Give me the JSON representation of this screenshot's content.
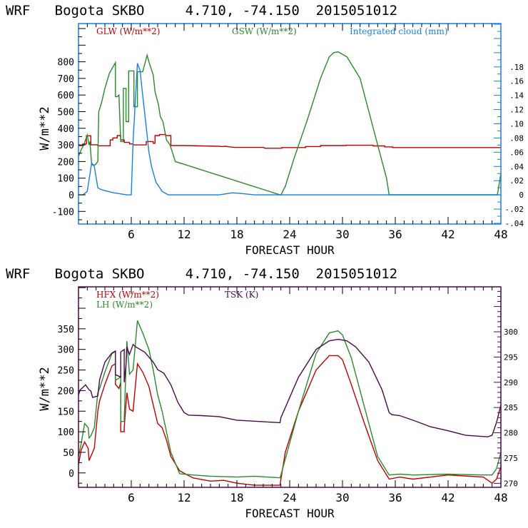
{
  "chart_data": [
    {
      "type": "line",
      "title": "WRF   Bogota SKBO     4.710, -74.150  2015051012",
      "xlabel": "FORECAST HOUR",
      "ylabel": "W/m**2",
      "xlim": [
        0,
        48
      ],
      "ylim": [
        -176,
        1030
      ],
      "y2lim": [
        -0.041,
        0.241
      ],
      "x_ticks": [
        6,
        12,
        18,
        24,
        30,
        36,
        42,
        48
      ],
      "y_ticks": [
        -100,
        0,
        100,
        200,
        300,
        400,
        500,
        600,
        700,
        800
      ],
      "y_tick_labels": [
        "-100",
        "0",
        "100",
        "200",
        "300",
        "400",
        "500",
        "600",
        "700",
        "800"
      ],
      "y2_ticks": [
        -0.04,
        -0.02,
        0,
        0.02,
        0.04,
        0.06,
        0.08,
        0.1,
        0.12,
        0.14,
        0.16,
        0.18
      ],
      "y2_tick_labels": [
        "-.04",
        "-.02",
        "0",
        ".02",
        ".04",
        ".06",
        ".08",
        ".10",
        ".12",
        ".14",
        ".16",
        ".18"
      ],
      "frame_color": "#1a7fe0",
      "legend": [
        {
          "label": "GLW (W/m**2)",
          "color": "#c00000"
        },
        {
          "label": "GSW (W/m**2)",
          "color": "#2a8a2a"
        },
        {
          "label": "Integrated cloud (mm)",
          "color": "#1a7fe0"
        }
      ],
      "series": [
        {
          "name": "GLW (W/m**2)",
          "color": "#c00000",
          "axis": "left",
          "x": [
            0,
            0.5,
            0.5,
            0.9,
            0.9,
            1.4,
            1.4,
            2.2,
            2.2,
            3.6,
            3.6,
            3.9,
            3.9,
            4.4,
            4.4,
            4.8,
            4.8,
            5.2,
            5.2,
            5.8,
            5.8,
            6.2,
            6.2,
            7.7,
            7.7,
            8.5,
            8.5,
            8.7,
            8.7,
            9.2,
            9.2,
            9.9,
            9.9,
            10.5,
            10.5,
            12,
            16,
            16.3,
            16.7,
            17.2,
            17.8,
            21,
            21.2,
            23.1,
            23.1,
            25.8,
            25.8,
            27.5,
            27.5,
            30.4,
            30.4,
            33.5,
            33.5,
            34.8,
            34.8,
            35.7,
            35.7,
            40,
            48
          ],
          "y": [
            296,
            296,
            306,
            306,
            355,
            355,
            301,
            301,
            295,
            295,
            330,
            330,
            342,
            342,
            356,
            356,
            330,
            330,
            315,
            315,
            306,
            306,
            300,
            300,
            320,
            320,
            310,
            310,
            356,
            356,
            362,
            362,
            356,
            356,
            296,
            296,
            292,
            290,
            292,
            288,
            285,
            285,
            280,
            280,
            284,
            284,
            290,
            290,
            296,
            296,
            298,
            298,
            294,
            294,
            288,
            288,
            284,
            284,
            284
          ]
        },
        {
          "name": "GSW (W/m**2)",
          "color": "#2a8a2a",
          "axis": "left",
          "x": [
            0,
            0.3,
            0.6,
            1.0,
            1.2,
            1.3,
            1.5,
            1.9,
            2.2,
            2.3,
            2.6,
            3.0,
            3.5,
            4.2,
            4.2,
            4.4,
            4.6,
            4.8,
            4.8,
            5.1,
            5.1,
            5.4,
            5.4,
            5.7,
            5.7,
            6.3,
            6.3,
            6.7,
            6.7,
            7.3,
            7.8,
            8.0,
            8.5,
            8.7,
            9.1,
            9.3,
            9.6,
            10.0,
            10.4,
            11.0,
            22.9,
            23.0,
            23.5,
            24.5,
            26.0,
            27.5,
            28.5,
            29.0,
            29.5,
            30.5,
            32.0,
            33.0,
            34.0,
            35.0,
            35.3,
            47.2,
            47.6,
            48
          ],
          "y": [
            230,
            270,
            300,
            360,
            300,
            320,
            180,
            180,
            200,
            500,
            550,
            640,
            730,
            795,
            590,
            590,
            600,
            320,
            320,
            320,
            640,
            640,
            440,
            440,
            745,
            745,
            530,
            530,
            740,
            740,
            840,
            800,
            720,
            620,
            540,
            470,
            440,
            330,
            300,
            200,
            0,
            0,
            50,
            220,
            450,
            700,
            830,
            855,
            860,
            830,
            700,
            500,
            300,
            100,
            0,
            0,
            0,
            130
          ]
        },
        {
          "name": "Integrated cloud (mm)",
          "color": "#1a7fe0",
          "axis": "right",
          "x": [
            0,
            0.5,
            1.0,
            1.5,
            1.8,
            2.2,
            2.5,
            3.0,
            4.0,
            5.5,
            6.0,
            6.2,
            6.7,
            7.0,
            7.3,
            7.7,
            8.0,
            8.3,
            8.8,
            9.5,
            10.2,
            10.5,
            11.5,
            12.5,
            14.0,
            15.0,
            16.0,
            17.0,
            17.5,
            18.5,
            20.0,
            30.0,
            40.0,
            48.0
          ],
          "y": [
            0,
            0,
            0.005,
            0.045,
            0.04,
            0.01,
            0.008,
            0.006,
            0.003,
            0.0,
            0.0,
            0.075,
            0.185,
            0.175,
            0.14,
            0.095,
            0.06,
            0.04,
            0.018,
            0.005,
            0.0,
            0.0,
            0.0,
            0.0,
            0.0,
            0.0,
            0.0,
            0.002,
            0.003,
            0.002,
            0.0,
            0.0,
            0.0,
            0.0
          ]
        }
      ]
    },
    {
      "type": "line",
      "title": "WRF   Bogota SKBO     4.710, -74.150  2015051012",
      "xlabel": "FORECAST HOUR",
      "ylabel": "W/m**2",
      "xlim": [
        0,
        48
      ],
      "ylim": [
        -35,
        452
      ],
      "y2lim": [
        269.2,
        308.9
      ],
      "x_ticks": [
        6,
        12,
        18,
        24,
        30,
        36,
        42,
        48
      ],
      "y_ticks": [
        0,
        50,
        100,
        150,
        200,
        250,
        300,
        350
      ],
      "y_tick_labels": [
        "0",
        "50",
        "100",
        "150",
        "200",
        "250",
        "300",
        "350"
      ],
      "y2_ticks": [
        270,
        275,
        280,
        285,
        290,
        295,
        300
      ],
      "y2_tick_labels": [
        "270",
        "275",
        "280",
        "285",
        "290",
        "295",
        "300"
      ],
      "frame_color": "#4a0a4a",
      "legend": [
        {
          "label": "HFX (W/m**2)",
          "color": "#c00000"
        },
        {
          "label": "LH  (W/m**2)",
          "color": "#2a8a2a"
        },
        {
          "label": "TSK (K)",
          "color": "#4a0a4a"
        }
      ],
      "series": [
        {
          "name": "HFX (W/m**2)",
          "color": "#c00000",
          "axis": "left",
          "x": [
            0,
            0.3,
            0.7,
            1.1,
            1.2,
            1.4,
            1.8,
            2.2,
            2.4,
            3.0,
            3.8,
            4.2,
            4.2,
            4.6,
            4.8,
            4.8,
            5.2,
            5.2,
            5.5,
            5.8,
            6.2,
            6.7,
            7.3,
            8.0,
            8.5,
            9.0,
            9.5,
            10.0,
            10.5,
            11.5,
            13.0,
            15.0,
            16.5,
            18.0,
            20.0,
            22.9,
            23.5,
            25.0,
            27.0,
            28.5,
            29.5,
            30.0,
            31.0,
            32.5,
            34.0,
            35.3,
            36.5,
            38.0,
            42.0,
            46.0,
            47.0,
            47.5,
            48
          ],
          "y": [
            20,
            55,
            75,
            60,
            30,
            40,
            60,
            150,
            175,
            215,
            260,
            265,
            215,
            205,
            220,
            100,
            100,
            110,
            195,
            155,
            150,
            265,
            245,
            210,
            165,
            120,
            110,
            80,
            40,
            5,
            -12,
            -20,
            -18,
            -25,
            -30,
            -30,
            50,
            150,
            250,
            285,
            285,
            275,
            215,
            120,
            30,
            -15,
            -10,
            -15,
            -5,
            -10,
            -25,
            -15,
            15
          ]
        },
        {
          "name": "LH  (W/m**2)",
          "color": "#2a8a2a",
          "axis": "left",
          "x": [
            0,
            0.3,
            0.7,
            1.1,
            1.2,
            1.4,
            1.8,
            2.2,
            2.4,
            3.0,
            3.8,
            4.2,
            4.2,
            4.6,
            4.8,
            4.8,
            5.2,
            5.2,
            5.5,
            5.8,
            6.2,
            6.7,
            7.3,
            8.0,
            8.5,
            9.0,
            9.5,
            10.0,
            10.5,
            11.5,
            13.0,
            15.0,
            18.0,
            20.0,
            22.9,
            23.0,
            25.0,
            27.0,
            28.5,
            29.5,
            30.0,
            31.0,
            32.5,
            34.0,
            35.3,
            36.5,
            38.0,
            42.0,
            46.0,
            47.0,
            47.5,
            48
          ],
          "y": [
            40,
            70,
            120,
            110,
            85,
            90,
            110,
            195,
            205,
            245,
            290,
            295,
            225,
            230,
            235,
            125,
            125,
            130,
            320,
            240,
            250,
            370,
            340,
            300,
            250,
            190,
            150,
            100,
            50,
            -2,
            -5,
            -8,
            -10,
            -8,
            -12,
            -5,
            150,
            290,
            340,
            345,
            335,
            280,
            160,
            40,
            -5,
            -3,
            -5,
            -3,
            -5,
            -5,
            10,
            50
          ]
        },
        {
          "name": "TSK (K)",
          "color": "#4a0a4a",
          "axis": "right",
          "x": [
            0,
            0.2,
            0.8,
            1.2,
            1.4,
            1.6,
            2.2,
            2.4,
            3.0,
            3.8,
            4.2,
            4.2,
            4.6,
            4.8,
            4.8,
            5.2,
            5.2,
            5.4,
            5.5,
            5.8,
            6.2,
            6.5,
            7.5,
            8.5,
            9.0,
            9.7,
            10.5,
            11.3,
            12.0,
            12.5,
            14.0,
            16.0,
            18.0,
            20.0,
            22.9,
            23.0,
            25.0,
            27.0,
            28.5,
            29.5,
            30.5,
            31.5,
            33.0,
            34.5,
            35.3,
            35.6,
            36.5,
            38.0,
            40.0,
            42.0,
            44.0,
            46.5,
            47.0,
            47.5,
            48
          ],
          "y": [
            287.5,
            288.5,
            289.5,
            288.5,
            288.3,
            287.0,
            287.3,
            290.5,
            294.0,
            295.8,
            296.2,
            291.5,
            291.2,
            291.0,
            296.0,
            296.5,
            290.0,
            293.5,
            297.0,
            295.5,
            297.5,
            297.0,
            296.0,
            294.0,
            292.5,
            291.8,
            289.5,
            286.0,
            284.0,
            283.5,
            283.4,
            283.2,
            282.5,
            282.3,
            282.0,
            283.0,
            291.0,
            296.5,
            298.2,
            298.5,
            298.2,
            297.0,
            294.0,
            288.5,
            284.0,
            283.6,
            283.4,
            282.5,
            281.2,
            280.4,
            279.5,
            279.2,
            279.5,
            282.0,
            285.5
          ]
        }
      ]
    }
  ]
}
